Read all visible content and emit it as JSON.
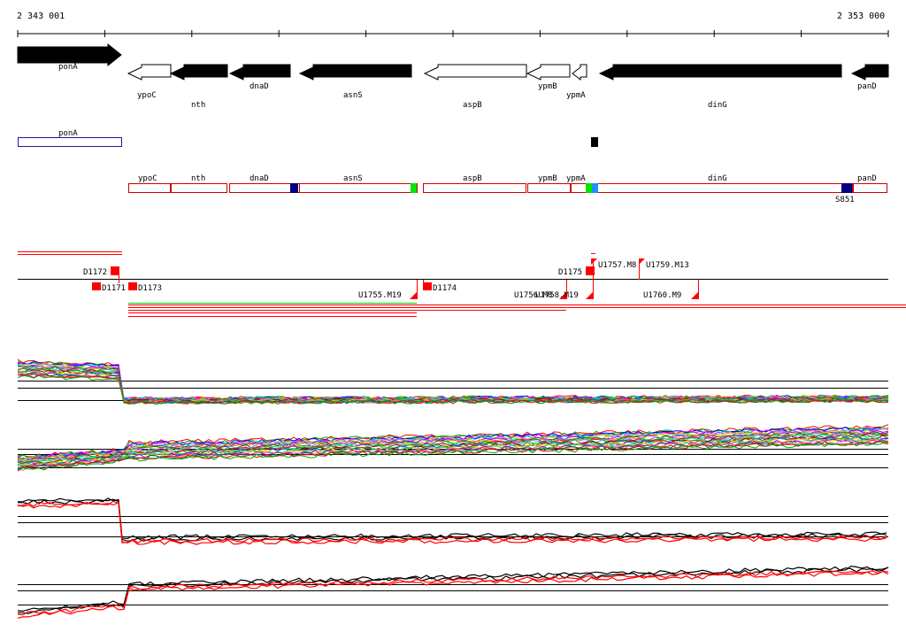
{
  "coords": {
    "start": "2 343 001",
    "end": "2 353 000"
  },
  "gene_track": [
    {
      "name": "ponA",
      "strand": "+",
      "fill": "#000000"
    },
    {
      "name": "ypoC",
      "strand": "-",
      "fill": "#ffffff"
    },
    {
      "name": "nth",
      "strand": "-",
      "fill": "#000000"
    },
    {
      "name": "dnaD",
      "strand": "-",
      "fill": "#000000"
    },
    {
      "name": "asnS",
      "strand": "-",
      "fill": "#000000"
    },
    {
      "name": "aspB",
      "strand": "-",
      "fill": "#ffffff"
    },
    {
      "name": "ypmB",
      "strand": "-",
      "fill": "#ffffff"
    },
    {
      "name": "ypmA",
      "strand": "-",
      "fill": "#ffffff"
    },
    {
      "name": "dinG",
      "strand": "-",
      "fill": "#000000"
    },
    {
      "name": "panD",
      "strand": "-",
      "fill": "#000000"
    }
  ],
  "operon_track": [
    {
      "name": "ponA",
      "color": "#1a1aa6"
    }
  ],
  "transcript_track": [
    {
      "name": "ypoC"
    },
    {
      "name": "nth"
    },
    {
      "name": "dnaD"
    },
    {
      "name": "asnS"
    },
    {
      "name": "aspB"
    },
    {
      "name": "ypmB"
    },
    {
      "name": "ypmA"
    },
    {
      "name": "dinG"
    },
    {
      "name": "panD"
    }
  ],
  "site_label": "S851",
  "probe_labels": [
    "D1172",
    "D1171",
    "D1173",
    "U1755.M19",
    "D1174",
    "U1756.M8",
    "U1758.M19",
    "D1175",
    "U1757.M8",
    "U1759.M13",
    "U1760.M9"
  ],
  "colors": {
    "gene_stroke": "#000000",
    "operon_outline": "#1a1aa6",
    "transcript_outline": "#cc0000",
    "marker_red": "#ff0000",
    "marker_navy": "#000080",
    "marker_green": "#00e600",
    "marker_blue": "#1e90ff",
    "profile_black": "#000000",
    "profile_red": "#ff0000"
  }
}
